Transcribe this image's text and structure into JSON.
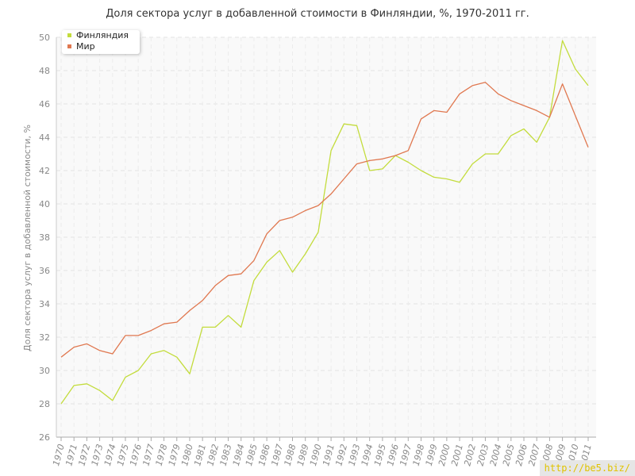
{
  "chart_data": {
    "type": "line",
    "title": "Доля сектора услуг в добавленной стоимости в Финляндии, %, 1970-2011 гг.",
    "ylabel": "Доля сектора услуг в добавленной стоимости, %",
    "xlabel": "",
    "ylim": [
      26,
      50
    ],
    "yticks": [
      "26",
      "28",
      "30",
      "32",
      "34",
      "36",
      "38",
      "40",
      "42",
      "44",
      "46",
      "48",
      "50"
    ],
    "grid": true,
    "legend_position": "top-left",
    "x": [
      "1970",
      "1971",
      "1972",
      "1973",
      "1974",
      "1975",
      "1976",
      "1977",
      "1978",
      "1979",
      "1980",
      "1981",
      "1982",
      "1983",
      "1984",
      "1985",
      "1986",
      "1987",
      "1988",
      "1989",
      "1990",
      "1991",
      "1992",
      "1993",
      "1994",
      "1995",
      "1996",
      "1997",
      "1998",
      "1999",
      "2000",
      "2001",
      "2002",
      "2003",
      "2004",
      "2005",
      "2006",
      "2007",
      "2008",
      "2009",
      "2010",
      "2011"
    ],
    "series": [
      {
        "name": "Финляндия",
        "color": "#c3dc3c",
        "values": [
          28.0,
          29.1,
          29.2,
          28.8,
          28.2,
          29.6,
          30.0,
          31.0,
          31.2,
          30.8,
          29.8,
          32.6,
          32.6,
          33.3,
          32.6,
          35.4,
          36.5,
          37.2,
          35.9,
          37.0,
          38.3,
          43.2,
          44.8,
          44.7,
          42.0,
          42.1,
          42.9,
          42.5,
          42.0,
          41.6,
          41.5,
          41.3,
          42.4,
          43.0,
          43.0,
          44.1,
          44.5,
          43.7,
          45.2,
          49.8,
          48.1,
          47.1
        ]
      },
      {
        "name": "Мир",
        "color": "#e07850",
        "values": [
          30.8,
          31.4,
          31.6,
          31.2,
          31.0,
          32.1,
          32.1,
          32.4,
          32.8,
          32.9,
          33.6,
          34.2,
          35.1,
          35.7,
          35.8,
          36.6,
          38.2,
          39.0,
          39.2,
          39.6,
          39.9,
          40.6,
          41.5,
          42.4,
          42.6,
          42.7,
          42.9,
          43.2,
          45.1,
          45.6,
          45.5,
          46.6,
          47.1,
          47.3,
          46.6,
          46.2,
          45.9,
          45.6,
          45.2,
          47.2,
          45.3,
          43.4
        ]
      }
    ]
  },
  "watermark": "http://be5.biz/"
}
